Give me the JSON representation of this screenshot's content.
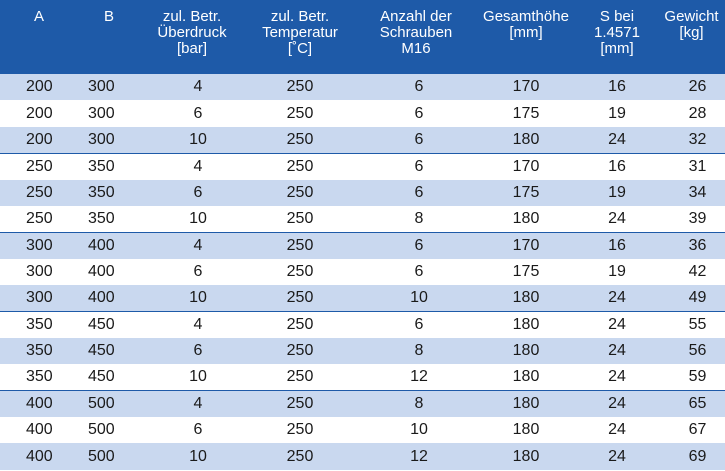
{
  "table": {
    "columns": [
      {
        "key": "a",
        "label": "A"
      },
      {
        "key": "b",
        "label": "B"
      },
      {
        "key": "bar",
        "label": "zul. Betr.\nÜberdruck\n[bar]"
      },
      {
        "key": "temp",
        "label": "zul. Betr.\nTemperatur\n[˚C]"
      },
      {
        "key": "schr",
        "label": "Anzahl der\nSchrauben\nM16"
      },
      {
        "key": "ges",
        "label": "Gesamthöhe\n[mm]"
      },
      {
        "key": "s",
        "label": "S bei\n1.4571\n[mm]"
      },
      {
        "key": "gew",
        "label": "Gewicht\n[kg]"
      }
    ],
    "rows": [
      [
        "200",
        "300",
        "4",
        "250",
        "6",
        "170",
        "16",
        "26"
      ],
      [
        "200",
        "300",
        "6",
        "250",
        "6",
        "175",
        "19",
        "28"
      ],
      [
        "200",
        "300",
        "10",
        "250",
        "6",
        "180",
        "24",
        "32"
      ],
      [
        "250",
        "350",
        "4",
        "250",
        "6",
        "170",
        "16",
        "31"
      ],
      [
        "250",
        "350",
        "6",
        "250",
        "6",
        "175",
        "19",
        "34"
      ],
      [
        "250",
        "350",
        "10",
        "250",
        "8",
        "180",
        "24",
        "39"
      ],
      [
        "300",
        "400",
        "4",
        "250",
        "6",
        "170",
        "16",
        "36"
      ],
      [
        "300",
        "400",
        "6",
        "250",
        "6",
        "175",
        "19",
        "42"
      ],
      [
        "300",
        "400",
        "10",
        "250",
        "10",
        "180",
        "24",
        "49"
      ],
      [
        "350",
        "450",
        "4",
        "250",
        "6",
        "180",
        "24",
        "55"
      ],
      [
        "350",
        "450",
        "6",
        "250",
        "8",
        "180",
        "24",
        "56"
      ],
      [
        "350",
        "450",
        "10",
        "250",
        "12",
        "180",
        "24",
        "59"
      ],
      [
        "400",
        "500",
        "4",
        "250",
        "8",
        "180",
        "24",
        "65"
      ],
      [
        "400",
        "500",
        "6",
        "250",
        "10",
        "180",
        "24",
        "67"
      ],
      [
        "400",
        "500",
        "10",
        "250",
        "12",
        "180",
        "24",
        "69"
      ]
    ]
  },
  "colors": {
    "header_bg": "#1e5aa8",
    "stripe_bg": "#c9d8ef",
    "group_divider": "#1e5aa8"
  }
}
